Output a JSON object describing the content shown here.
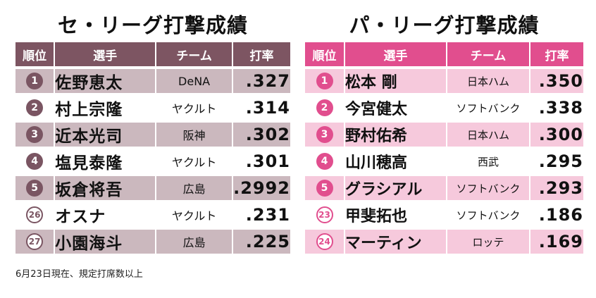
{
  "footnote": "6月23日現在、規定打席数以上",
  "headers": {
    "rank": "順位",
    "player": "選手",
    "team": "チーム",
    "avg": "打率"
  },
  "central": {
    "title": "セ・リーグ打撃成績",
    "rows": [
      {
        "rank": "1",
        "rank_style": "filled",
        "player": "佐野恵太",
        "team": "DeNA",
        "avg": ".327"
      },
      {
        "rank": "2",
        "rank_style": "filled",
        "player": "村上宗隆",
        "team": "ヤクルト",
        "avg": ".314"
      },
      {
        "rank": "3",
        "rank_style": "filled",
        "player": "近本光司",
        "team": "阪神",
        "avg": ".302"
      },
      {
        "rank": "4",
        "rank_style": "filled",
        "player": "塩見泰隆",
        "team": "ヤクルト",
        "avg": ".301"
      },
      {
        "rank": "5",
        "rank_style": "filled",
        "player": "坂倉将吾",
        "team": "広島",
        "avg": ".2992"
      },
      {
        "rank": "26",
        "rank_style": "outline",
        "player": "オスナ",
        "team": "ヤクルト",
        "avg": ".231"
      },
      {
        "rank": "27",
        "rank_style": "outline",
        "player": "小園海斗",
        "team": "広島",
        "avg": ".225"
      }
    ]
  },
  "pacific": {
    "title": "パ・リーグ打撃成績",
    "rows": [
      {
        "rank": "1",
        "rank_style": "filled",
        "player": "松本 剛",
        "team": "日本ハム",
        "avg": ".350"
      },
      {
        "rank": "2",
        "rank_style": "filled",
        "player": "今宮健太",
        "team": "ソフトバンク",
        "avg": ".338"
      },
      {
        "rank": "3",
        "rank_style": "filled",
        "player": "野村佑希",
        "team": "日本ハム",
        "avg": ".300"
      },
      {
        "rank": "4",
        "rank_style": "filled",
        "player": "山川穂高",
        "team": "西武",
        "avg": ".295"
      },
      {
        "rank": "5",
        "rank_style": "filled",
        "player": "グラシアル",
        "team": "ソフトバンク",
        "avg": ".293"
      },
      {
        "rank": "23",
        "rank_style": "outline",
        "player": "甲斐拓也",
        "team": "ソフトバンク",
        "avg": ".186"
      },
      {
        "rank": "24",
        "rank_style": "outline",
        "player": "マーティン",
        "team": "ロッテ",
        "avg": ".169"
      }
    ]
  },
  "colors": {
    "central_header": "#7d5562",
    "central_row_shade": "#cbb8be",
    "pacific_header": "#e14e8e",
    "pacific_row_shade": "#f6c9dc"
  }
}
